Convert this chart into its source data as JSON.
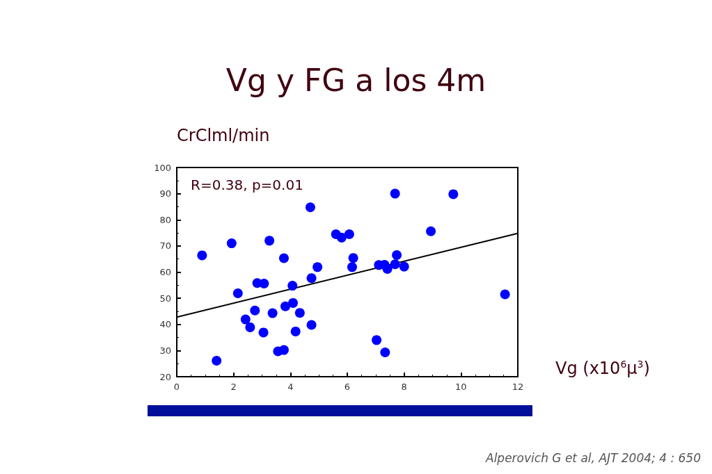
{
  "chart_data": {
    "type": "scatter",
    "title": "Vg y FG a los 4m",
    "ylabel": "CrClml/min",
    "xlabel": "Vg (x10$^{6}$μ$^{3}$)",
    "annotations": [
      "R=0.38, p=0.01",
      "Alperovich G et al, AJT 2004; 4 : 650"
    ],
    "xlim": [
      0,
      12
    ],
    "xticks": [
      0,
      2,
      4,
      6,
      8,
      10,
      12
    ],
    "ylim": [
      20,
      100
    ],
    "yticks": [
      20,
      30,
      40,
      50,
      60,
      70,
      80,
      90,
      100
    ],
    "grid": false,
    "marker": "circle",
    "series": [
      {
        "color": "#0000ff",
        "x": [
          0.89,
          1.4,
          1.93,
          2.15,
          2.42,
          2.58,
          2.75,
          2.83,
          3.07,
          3.05,
          3.26,
          3.37,
          3.56,
          3.77,
          3.77,
          3.82,
          4.07,
          4.09,
          4.18,
          4.33,
          4.7,
          4.74,
          4.74,
          4.95,
          5.6,
          5.8,
          6.07,
          6.21,
          6.17,
          7.11,
          7.31,
          7.41,
          7.68,
          7.74,
          7.68,
          8.0,
          8.94,
          9.73,
          11.55,
          7.03,
          7.33
        ],
        "values": [
          66.4,
          26.1,
          71,
          51.9,
          41.9,
          38.9,
          45.3,
          55.8,
          55.6,
          36.9,
          72,
          44.3,
          29.7,
          30.2,
          65.3,
          46.9,
          54.8,
          48.2,
          37.3,
          44.4,
          84.8,
          57.7,
          39.8,
          61.9,
          74.5,
          73.2,
          74.5,
          65.4,
          61.9,
          62.7,
          62.8,
          61.2,
          90,
          66.5,
          63,
          62.1,
          75.6,
          89.8,
          51.5,
          34,
          29.3
        ]
      },
      {
        "type": "line",
        "color": "#000000",
        "x": [
          0,
          12
        ],
        "values": [
          42.8,
          74.8
        ],
        "marker": "none",
        "line_style": "solid"
      }
    ]
  }
}
